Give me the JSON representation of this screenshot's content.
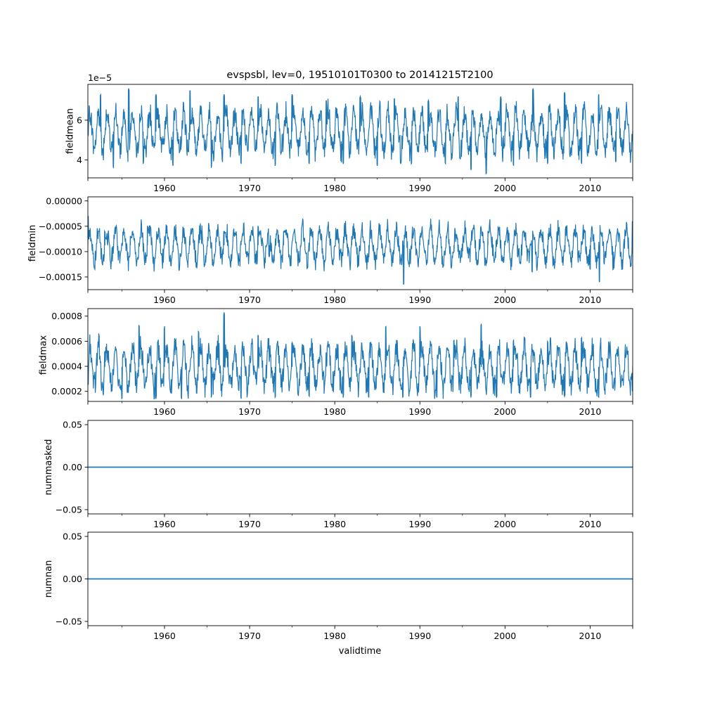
{
  "figure": {
    "title": "evspsbl, lev=0, 19510101T0300 to 20141215T2100",
    "xlabel": "validtime"
  },
  "style": {
    "line_color": "#1f77b4",
    "axis_color": "#000000",
    "background": "#ffffff"
  },
  "chart_data": [
    {
      "type": "line",
      "name": "fieldmean",
      "ylabel": "fieldmean",
      "offset_label": "1e−5",
      "xlim": [
        1951.0,
        2015.0
      ],
      "ylim": [
        3.1e-05,
        7.8e-05
      ],
      "xticks": [
        1960,
        1970,
        1980,
        1990,
        2000,
        2010
      ],
      "xtick_labels": [
        "1960",
        "1970",
        "1980",
        "1990",
        "2000",
        "2010"
      ],
      "yticks": [
        4e-05,
        6e-05
      ],
      "ytick_labels": [
        "4",
        "6"
      ],
      "x": [
        1951.0,
        1952.5,
        1954.0,
        1955.8,
        1957.5,
        1959.0,
        1961.0,
        1963.0,
        1965.5,
        1967.0,
        1969.0,
        1971.0,
        1973.0,
        1975.0,
        1977.0,
        1979.0,
        1981.0,
        1983.0,
        1985.0,
        1987.0,
        1989.0,
        1991.0,
        1993.0,
        1994.5,
        1996.0,
        1997.8,
        1999.5,
        2001.0,
        2003.3,
        2005.0,
        2007.0,
        2009.0,
        2011.0,
        2013.0,
        2015.0
      ],
      "y": [
        5.2e-05,
        7.3e-05,
        3.6e-05,
        7.6e-05,
        3.8e-05,
        7.3e-05,
        3.7e-05,
        7.5e-05,
        3.6e-05,
        7.3e-05,
        3.8e-05,
        7.2e-05,
        3.7e-05,
        7.3e-05,
        3.8e-05,
        7e-05,
        3.8e-05,
        7.2e-05,
        3.7e-05,
        7.1e-05,
        3.8e-05,
        7e-05,
        3.8e-05,
        7.2e-05,
        3.5e-05,
        3.3e-05,
        7.2e-05,
        3.7e-05,
        7.6e-05,
        3.8e-05,
        7.4e-05,
        3.8e-05,
        7.3e-05,
        3.9e-05,
        5e-05
      ]
    },
    {
      "type": "line",
      "name": "fieldmin",
      "ylabel": "fieldmin",
      "xlim": [
        1951.0,
        2015.0
      ],
      "ylim": [
        -0.000175,
        8e-06
      ],
      "xticks": [
        1960,
        1970,
        1980,
        1990,
        2000,
        2010
      ],
      "xtick_labels": [
        "1960",
        "1970",
        "1980",
        "1990",
        "2000",
        "2010"
      ],
      "yticks": [
        0.0,
        -5e-05,
        -0.0001,
        -0.00015
      ],
      "ytick_labels": [
        "0.00000",
        "−0.00005",
        "−0.00010",
        "−0.00015"
      ],
      "x": [
        1951.0,
        1953.0,
        1953.3,
        1956.0,
        1958.0,
        1961.0,
        1963.0,
        1965.0,
        1967.0,
        1969.0,
        1971.0,
        1972.3,
        1974.0,
        1976.0,
        1978.0,
        1980.0,
        1982.0,
        1984.0,
        1986.0,
        1988.1,
        1990.0,
        1992.0,
        1994.0,
        1996.0,
        1998.0,
        2000.0,
        2001.5,
        2003.2,
        2005.0,
        2007.0,
        2009.0,
        2010.0,
        2011.1,
        2013.0,
        2015.0
      ],
      "y": [
        -3e-05,
        -6e-05,
        -8.6e-05,
        -7e-05,
        -5e-05,
        -0.0001,
        -7e-05,
        -9e-05,
        -6e-05,
        -8e-05,
        -5e-05,
        -0.00011,
        -6e-05,
        -9e-05,
        -8e-05,
        -9e-05,
        -7e-05,
        -0.00011,
        -9e-05,
        -0.000165,
        -7e-05,
        -0.0001,
        -0.0001,
        -8e-05,
        -6e-05,
        -8e-05,
        -0.00011,
        -0.00014,
        -0.0001,
        -0.0001,
        -8e-05,
        -0.000135,
        -0.00016,
        -9e-05,
        -4e-05
      ]
    },
    {
      "type": "line",
      "name": "fieldmax",
      "ylabel": "fieldmax",
      "xlim": [
        1951.0,
        2015.0
      ],
      "ylim": [
        0.00012,
        0.00086
      ],
      "xticks": [
        1960,
        1970,
        1980,
        1990,
        2000,
        2010
      ],
      "xtick_labels": [
        "1960",
        "1970",
        "1980",
        "1990",
        "2000",
        "2010"
      ],
      "yticks": [
        0.0002,
        0.0004,
        0.0006,
        0.0008
      ],
      "ytick_labels": [
        "0.0002",
        "0.0004",
        "0.0006",
        "0.0008"
      ],
      "x": [
        1951.0,
        1953.0,
        1955.0,
        1957.0,
        1959.0,
        1960.0,
        1962.0,
        1964.0,
        1965.5,
        1967.0,
        1969.0,
        1971.0,
        1973.0,
        1975.0,
        1977.0,
        1979.0,
        1981.0,
        1982.0,
        1984.0,
        1986.0,
        1988.0,
        1990.0,
        1992.0,
        1994.0,
        1996.0,
        1997.2,
        1999.0,
        2001.0,
        2003.0,
        2005.0,
        2007.0,
        2009.0,
        2011.0,
        2013.0,
        2015.0
      ],
      "y": [
        0.00025,
        0.00052,
        0.00014,
        0.00073,
        0.00014,
        0.00072,
        0.00014,
        0.00068,
        0.00015,
        0.00083,
        0.00014,
        0.00065,
        0.00015,
        0.00059,
        0.00016,
        0.00051,
        0.00015,
        0.00065,
        0.00015,
        0.00072,
        0.00015,
        0.00072,
        0.00015,
        0.00061,
        0.00015,
        0.00074,
        0.00015,
        0.00061,
        0.00015,
        0.0006,
        0.00016,
        0.00063,
        0.00015,
        0.00049,
        0.0002
      ]
    },
    {
      "type": "line",
      "name": "nummasked",
      "ylabel": "nummasked",
      "xlim": [
        1951.0,
        2015.0
      ],
      "ylim": [
        -0.055,
        0.055
      ],
      "xticks": [
        1960,
        1970,
        1980,
        1990,
        2000,
        2010
      ],
      "xtick_labels": [
        "1960",
        "1970",
        "1980",
        "1990",
        "2000",
        "2010"
      ],
      "yticks": [
        0.05,
        0.0,
        -0.05
      ],
      "ytick_labels": [
        "0.05",
        "0.00",
        "−0.05"
      ],
      "x": [
        1951.0,
        2015.0
      ],
      "y": [
        0.0,
        0.0
      ]
    },
    {
      "type": "line",
      "name": "numnan",
      "ylabel": "numnan",
      "xlim": [
        1951.0,
        2015.0
      ],
      "ylim": [
        -0.055,
        0.055
      ],
      "xticks": [
        1960,
        1970,
        1980,
        1990,
        2000,
        2010
      ],
      "xtick_labels": [
        "1960",
        "1970",
        "1980",
        "1990",
        "2000",
        "2010"
      ],
      "yticks": [
        0.05,
        0.0,
        -0.05
      ],
      "ytick_labels": [
        "0.05",
        "0.00",
        "−0.05"
      ],
      "x": [
        1951.0,
        2015.0
      ],
      "y": [
        0.0,
        0.0
      ]
    }
  ]
}
